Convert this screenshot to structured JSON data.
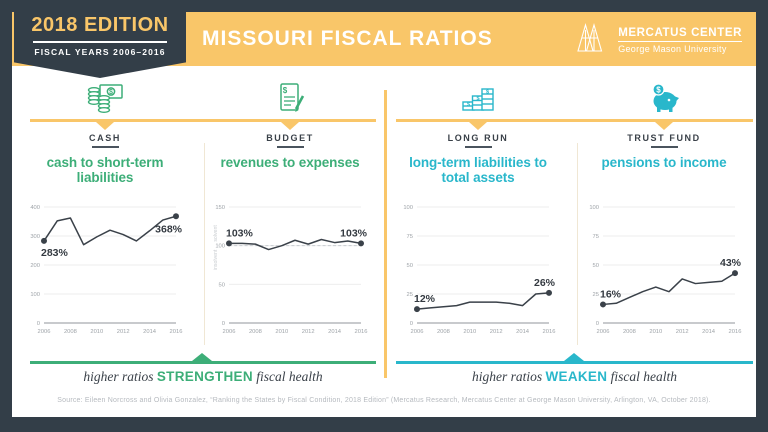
{
  "header": {
    "edition_badge": {
      "title": "2018 EDITION",
      "subtitle": "FISCAL YEARS 2006–2016"
    },
    "title": "MISSOURI FISCAL RATIOS",
    "logo": {
      "name": "MERCATUS CENTER",
      "subname": "George Mason University"
    }
  },
  "colors": {
    "navy": "#333E48",
    "yellow": "#F9C669",
    "green": "#3DAE78",
    "teal": "#29B7CB",
    "chart_line": "#3A4149"
  },
  "columns": [
    {
      "id": "cash",
      "icon": "cash-icon",
      "label": "CASH",
      "heading": "cash to short-term liabilities",
      "accent": "green"
    },
    {
      "id": "budget",
      "icon": "budget-icon",
      "label": "BUDGET",
      "heading": "revenues to expenses",
      "accent": "green"
    },
    {
      "id": "long-run",
      "icon": "long-run-icon",
      "label": "LONG RUN",
      "heading": "long-term liabilities to total assets",
      "accent": "teal"
    },
    {
      "id": "trust-fund",
      "icon": "trust-fund-icon",
      "label": "TRUST FUND",
      "heading": "pensions to income",
      "accent": "teal"
    }
  ],
  "chart_data": [
    {
      "type": "line",
      "title": "cash to short-term liabilities",
      "x": [
        2006,
        2007,
        2008,
        2009,
        2010,
        2011,
        2012,
        2013,
        2014,
        2015,
        2016
      ],
      "values": [
        283,
        352,
        362,
        270,
        297,
        320,
        305,
        283,
        318,
        355,
        368
      ],
      "ylim": [
        0,
        400
      ],
      "yticks": [
        0,
        100,
        200,
        300,
        400
      ],
      "xticks": [
        2006,
        2008,
        2010,
        2012,
        2014,
        2016
      ],
      "grid": true,
      "start_label": {
        "text": "283%",
        "pos": "below"
      },
      "end_label": {
        "text": "368%",
        "pos": "below"
      }
    },
    {
      "type": "line",
      "title": "revenues to expenses",
      "x": [
        2006,
        2007,
        2008,
        2009,
        2010,
        2011,
        2012,
        2013,
        2014,
        2015,
        2016
      ],
      "values": [
        103,
        103,
        102,
        95,
        100,
        107,
        102,
        108,
        104,
        106,
        103
      ],
      "ylim": [
        0,
        150
      ],
      "yticks": [
        0,
        50,
        100,
        150
      ],
      "xticks": [
        2006,
        2008,
        2010,
        2012,
        2014,
        2016
      ],
      "grid": true,
      "ref_line": 100,
      "axis_annotations": [
        {
          "text": "solvent",
          "y": 100,
          "side": "above"
        },
        {
          "text": "insolvent",
          "y": 100,
          "side": "below"
        }
      ],
      "start_label": {
        "text": "103%",
        "pos": "above"
      },
      "end_label": {
        "text": "103%",
        "pos": "above"
      }
    },
    {
      "type": "line",
      "title": "long-term liabilities to total assets",
      "x": [
        2006,
        2007,
        2008,
        2009,
        2010,
        2011,
        2012,
        2013,
        2014,
        2015,
        2016
      ],
      "values": [
        12,
        13,
        14,
        15,
        18,
        18,
        18,
        17,
        15,
        25,
        26
      ],
      "ylim": [
        0,
        100
      ],
      "yticks": [
        0,
        25,
        50,
        75,
        100
      ],
      "xticks": [
        2006,
        2008,
        2010,
        2012,
        2014,
        2016
      ],
      "grid": true,
      "start_label": {
        "text": "12%",
        "pos": "above"
      },
      "end_label": {
        "text": "26%",
        "pos": "above"
      }
    },
    {
      "type": "line",
      "title": "pensions to income",
      "x": [
        2006,
        2007,
        2008,
        2009,
        2010,
        2011,
        2012,
        2013,
        2014,
        2015,
        2016
      ],
      "values": [
        16,
        17,
        22,
        27,
        31,
        27,
        38,
        34,
        35,
        36,
        43
      ],
      "ylim": [
        0,
        100
      ],
      "yticks": [
        0,
        25,
        50,
        75,
        100
      ],
      "xticks": [
        2006,
        2008,
        2010,
        2012,
        2014,
        2016
      ],
      "grid": true,
      "start_label": {
        "text": "16%",
        "pos": "above"
      },
      "end_label": {
        "text": "43%",
        "pos": "above"
      }
    }
  ],
  "banners": [
    {
      "prefix": "higher ratios",
      "emphasis": "STRENGTHEN",
      "suffix": "fiscal health",
      "color": "#3DAE78"
    },
    {
      "prefix": "higher ratios",
      "emphasis": "WEAKEN",
      "suffix": "fiscal health",
      "color": "#29B7CB"
    }
  ],
  "source": "Source: Eileen Norcross and Olivia Gonzalez, “Ranking the States by Fiscal Condition, 2018 Edition” (Mercatus Research, Mercatus Center at George Mason University, Arlington, VA, October 2018)."
}
